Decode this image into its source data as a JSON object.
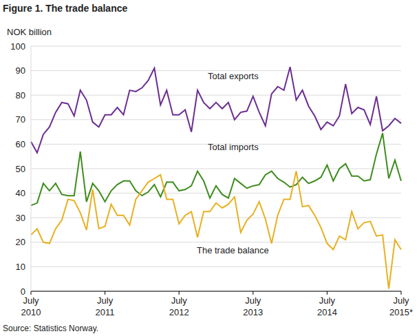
{
  "chart_data": {
    "type": "line",
    "title": "Figure 1. The trade balance",
    "y_label": "NOK billion",
    "source": "Source: Statistics Norway.",
    "annotations": [
      "Total exports",
      "Total imports",
      "The trade balance"
    ],
    "categories": [
      "July 2010",
      null,
      null,
      null,
      null,
      null,
      null,
      null,
      null,
      null,
      null,
      null,
      "July 2011",
      null,
      null,
      null,
      null,
      null,
      null,
      null,
      null,
      null,
      null,
      null,
      "July 2012",
      null,
      null,
      null,
      null,
      null,
      null,
      null,
      null,
      null,
      null,
      null,
      "July 2013",
      null,
      null,
      null,
      null,
      null,
      null,
      null,
      null,
      null,
      null,
      null,
      "July 2014",
      null,
      null,
      null,
      null,
      null,
      null,
      null,
      null,
      null,
      null,
      null,
      "July 2015*"
    ],
    "series": [
      {
        "name": "Total exports",
        "color": "#6b2c91",
        "values": [
          61,
          56.5,
          64,
          67,
          73,
          77,
          76.5,
          71.5,
          82,
          78,
          69,
          67,
          72,
          72,
          75,
          72,
          82,
          81.5,
          83,
          86,
          91,
          76,
          82,
          72,
          72,
          74,
          65,
          82,
          77,
          74.5,
          77,
          74.5,
          77,
          70,
          73,
          73.5,
          79.5,
          73,
          67.5,
          80.5,
          83.5,
          82,
          91.5,
          78,
          82,
          75.5,
          71.5,
          66,
          69,
          67.5,
          71.5,
          84.5,
          72.5,
          75,
          74,
          68,
          79.5,
          65.5,
          67.5,
          70.5,
          68.5
        ]
      },
      {
        "name": "Total imports",
        "color": "#3d8c1c",
        "values": [
          35,
          36,
          44,
          41,
          44,
          39.5,
          39,
          39,
          57,
          36.5,
          44,
          41,
          36.5,
          41,
          43.5,
          45,
          45,
          41,
          39,
          40.5,
          43.5,
          38.5,
          44.5,
          44.5,
          41,
          41.5,
          43,
          49,
          45,
          38,
          43,
          39.5,
          38,
          46,
          44,
          42,
          43,
          43.5,
          47.5,
          49,
          46,
          44.5,
          42.5,
          43.5,
          46.5,
          44,
          45,
          46.5,
          51.5,
          45,
          50,
          52,
          47,
          47,
          45,
          45.5,
          56,
          64.5,
          46,
          53.5,
          45
        ]
      },
      {
        "name": "The trade balance",
        "color": "#e8b020",
        "values": [
          23,
          25.5,
          20,
          19.5,
          25.5,
          29,
          37.5,
          37,
          32,
          25,
          41.5,
          25.5,
          26.5,
          35.5,
          31,
          31,
          27,
          37.5,
          41,
          44.5,
          46,
          47.5,
          37.5,
          37.5,
          27.5,
          31,
          32.5,
          22,
          32.5,
          32.5,
          36,
          34,
          35.5,
          38.5,
          24,
          29,
          31.5,
          36.5,
          29.5,
          19.5,
          31,
          37.5,
          37.5,
          49,
          34.5,
          35,
          31,
          26,
          19.5,
          17,
          22.5,
          21,
          32.5,
          25.5,
          28,
          28.5,
          22.5,
          23,
          1,
          21,
          17
        ]
      }
    ],
    "ylim": [
      0,
      100
    ],
    "yticks": [
      0,
      10,
      20,
      30,
      40,
      50,
      60,
      70,
      80,
      90,
      100
    ],
    "grid": true
  }
}
